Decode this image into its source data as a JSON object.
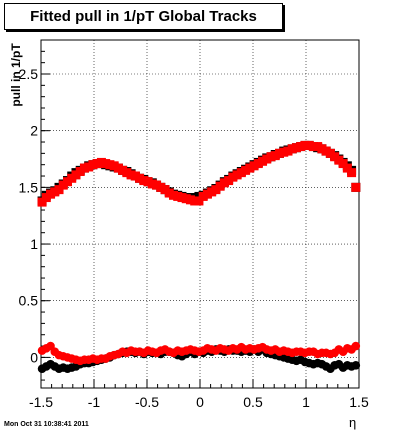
{
  "title": "Fitted pull in 1/pT  Global Tracks",
  "footer": "Mon Oct 31 10:38:41 2011",
  "chart_data": {
    "type": "scatter",
    "title": "Fitted pull in 1/pT  Global Tracks",
    "xlabel": "η",
    "ylabel": "pull in 1/pT",
    "xlim": [
      -1.5,
      1.5
    ],
    "ylim": [
      -0.27,
      2.8
    ],
    "x_ticks": [
      -1.5,
      -1,
      -0.5,
      0,
      0.5,
      1,
      1.5
    ],
    "x_tick_labels": [
      "-1.5",
      "-1",
      "-0.5",
      "0",
      "0.5",
      "1",
      "1.5"
    ],
    "y_ticks": [
      0,
      0.5,
      1,
      1.5,
      2,
      2.5
    ],
    "y_tick_labels": [
      "0",
      "0.5",
      "1",
      "1.5",
      "2",
      "2.5"
    ],
    "grid": true,
    "colors": {
      "black": "#000000",
      "red": "#ff0000"
    },
    "series": [
      {
        "color": "#000000",
        "marker": "square",
        "x": [
          -1.49,
          -1.45,
          -1.41,
          -1.37,
          -1.33,
          -1.29,
          -1.25,
          -1.21,
          -1.17,
          -1.13,
          -1.09,
          -1.05,
          -1.01,
          -0.97,
          -0.93,
          -0.89,
          -0.85,
          -0.81,
          -0.77,
          -0.73,
          -0.69,
          -0.65,
          -0.61,
          -0.57,
          -0.53,
          -0.49,
          -0.45,
          -0.41,
          -0.37,
          -0.33,
          -0.29,
          -0.25,
          -0.21,
          -0.17,
          -0.13,
          -0.09,
          -0.05,
          -0.01,
          0.03,
          0.07,
          0.11,
          0.15,
          0.19,
          0.23,
          0.27,
          0.31,
          0.35,
          0.39,
          0.43,
          0.47,
          0.51,
          0.55,
          0.59,
          0.63,
          0.67,
          0.71,
          0.75,
          0.79,
          0.83,
          0.87,
          0.91,
          0.95,
          0.99,
          1.03,
          1.07,
          1.11,
          1.15,
          1.19,
          1.23,
          1.27,
          1.31,
          1.35,
          1.39,
          1.43,
          1.47
        ],
        "y": [
          1.38,
          1.43,
          1.45,
          1.47,
          1.5,
          1.53,
          1.56,
          1.6,
          1.63,
          1.65,
          1.67,
          1.69,
          1.7,
          1.71,
          1.71,
          1.7,
          1.69,
          1.68,
          1.67,
          1.65,
          1.64,
          1.62,
          1.6,
          1.58,
          1.57,
          1.55,
          1.54,
          1.52,
          1.5,
          1.48,
          1.46,
          1.44,
          1.43,
          1.42,
          1.41,
          1.41,
          1.41,
          1.42,
          1.43,
          1.45,
          1.47,
          1.49,
          1.52,
          1.55,
          1.57,
          1.6,
          1.62,
          1.64,
          1.66,
          1.68,
          1.7,
          1.72,
          1.74,
          1.76,
          1.77,
          1.79,
          1.8,
          1.82,
          1.83,
          1.84,
          1.85,
          1.86,
          1.87,
          1.87,
          1.86,
          1.85,
          1.84,
          1.82,
          1.8,
          1.78,
          1.75,
          1.72,
          1.69,
          1.65,
          1.5
        ]
      },
      {
        "color": "#ff0000",
        "marker": "square",
        "x": [
          -1.49,
          -1.45,
          -1.41,
          -1.37,
          -1.33,
          -1.29,
          -1.25,
          -1.21,
          -1.17,
          -1.13,
          -1.09,
          -1.05,
          -1.01,
          -0.97,
          -0.93,
          -0.89,
          -0.85,
          -0.81,
          -0.77,
          -0.73,
          -0.69,
          -0.65,
          -0.61,
          -0.57,
          -0.53,
          -0.49,
          -0.45,
          -0.41,
          -0.37,
          -0.33,
          -0.29,
          -0.25,
          -0.21,
          -0.17,
          -0.13,
          -0.09,
          -0.05,
          -0.01,
          0.03,
          0.07,
          0.11,
          0.15,
          0.19,
          0.23,
          0.27,
          0.31,
          0.35,
          0.39,
          0.43,
          0.47,
          0.51,
          0.55,
          0.59,
          0.63,
          0.67,
          0.71,
          0.75,
          0.79,
          0.83,
          0.87,
          0.91,
          0.95,
          0.99,
          1.03,
          1.07,
          1.11,
          1.15,
          1.19,
          1.23,
          1.27,
          1.31,
          1.35,
          1.39,
          1.43,
          1.47
        ],
        "y": [
          1.37,
          1.41,
          1.44,
          1.46,
          1.48,
          1.52,
          1.55,
          1.58,
          1.61,
          1.64,
          1.67,
          1.68,
          1.7,
          1.71,
          1.72,
          1.71,
          1.7,
          1.69,
          1.67,
          1.65,
          1.63,
          1.61,
          1.6,
          1.58,
          1.56,
          1.55,
          1.53,
          1.52,
          1.5,
          1.48,
          1.45,
          1.43,
          1.42,
          1.41,
          1.4,
          1.39,
          1.38,
          1.38,
          1.42,
          1.44,
          1.46,
          1.48,
          1.51,
          1.54,
          1.56,
          1.59,
          1.61,
          1.63,
          1.65,
          1.67,
          1.69,
          1.71,
          1.73,
          1.75,
          1.77,
          1.78,
          1.8,
          1.81,
          1.82,
          1.84,
          1.85,
          1.86,
          1.87,
          1.87,
          1.86,
          1.86,
          1.84,
          1.82,
          1.8,
          1.77,
          1.74,
          1.71,
          1.67,
          1.63,
          1.5
        ]
      },
      {
        "color": "#000000",
        "marker": "circle",
        "x": [
          -1.49,
          -1.45,
          -1.41,
          -1.37,
          -1.33,
          -1.29,
          -1.25,
          -1.21,
          -1.17,
          -1.13,
          -1.09,
          -1.05,
          -1.01,
          -0.97,
          -0.93,
          -0.89,
          -0.85,
          -0.81,
          -0.77,
          -0.73,
          -0.69,
          -0.65,
          -0.61,
          -0.57,
          -0.53,
          -0.49,
          -0.45,
          -0.41,
          -0.37,
          -0.33,
          -0.29,
          -0.25,
          -0.21,
          -0.17,
          -0.13,
          -0.09,
          -0.05,
          -0.01,
          0.03,
          0.07,
          0.11,
          0.15,
          0.19,
          0.23,
          0.27,
          0.31,
          0.35,
          0.39,
          0.43,
          0.47,
          0.51,
          0.55,
          0.59,
          0.63,
          0.67,
          0.71,
          0.75,
          0.79,
          0.83,
          0.87,
          0.91,
          0.95,
          0.99,
          1.03,
          1.07,
          1.11,
          1.15,
          1.19,
          1.23,
          1.27,
          1.31,
          1.35,
          1.39,
          1.43,
          1.47
        ],
        "y": [
          -0.1,
          -0.08,
          -0.06,
          -0.08,
          -0.1,
          -0.09,
          -0.1,
          -0.09,
          -0.08,
          -0.06,
          -0.05,
          -0.05,
          -0.04,
          -0.03,
          -0.02,
          -0.01,
          0.0,
          0.02,
          0.03,
          0.04,
          0.05,
          0.05,
          0.04,
          0.05,
          0.03,
          0.05,
          0.04,
          0.04,
          0.03,
          0.05,
          0.05,
          0.04,
          0.02,
          0.01,
          0.03,
          0.05,
          0.03,
          0.05,
          0.04,
          0.06,
          0.05,
          0.07,
          0.06,
          0.05,
          0.07,
          0.06,
          0.06,
          0.05,
          0.06,
          0.05,
          0.07,
          0.05,
          0.07,
          0.04,
          0.03,
          0.02,
          0.01,
          0.0,
          -0.01,
          -0.02,
          -0.03,
          -0.02,
          -0.04,
          -0.05,
          -0.06,
          -0.05,
          -0.06,
          -0.08,
          -0.1,
          -0.07,
          -0.06,
          -0.09,
          -0.07,
          -0.08,
          -0.07
        ]
      },
      {
        "color": "#ff0000",
        "marker": "circle",
        "x": [
          -1.49,
          -1.45,
          -1.41,
          -1.37,
          -1.33,
          -1.29,
          -1.25,
          -1.21,
          -1.17,
          -1.13,
          -1.09,
          -1.05,
          -1.01,
          -0.97,
          -0.93,
          -0.89,
          -0.85,
          -0.81,
          -0.77,
          -0.73,
          -0.69,
          -0.65,
          -0.61,
          -0.57,
          -0.53,
          -0.49,
          -0.45,
          -0.41,
          -0.37,
          -0.33,
          -0.29,
          -0.25,
          -0.21,
          -0.17,
          -0.13,
          -0.09,
          -0.05,
          -0.01,
          0.03,
          0.07,
          0.11,
          0.15,
          0.19,
          0.23,
          0.27,
          0.31,
          0.35,
          0.39,
          0.43,
          0.47,
          0.51,
          0.55,
          0.59,
          0.63,
          0.67,
          0.71,
          0.75,
          0.79,
          0.83,
          0.87,
          0.91,
          0.95,
          0.99,
          1.03,
          1.07,
          1.11,
          1.15,
          1.19,
          1.23,
          1.27,
          1.31,
          1.35,
          1.39,
          1.43,
          1.47
        ],
        "y": [
          0.06,
          0.08,
          0.1,
          0.05,
          0.02,
          0.01,
          0.0,
          -0.01,
          -0.02,
          -0.03,
          -0.02,
          -0.02,
          -0.01,
          -0.02,
          -0.01,
          -0.01,
          0.01,
          0.02,
          0.03,
          0.05,
          0.04,
          0.06,
          0.05,
          0.05,
          0.04,
          0.06,
          0.05,
          0.04,
          0.06,
          0.07,
          0.05,
          0.04,
          0.06,
          0.05,
          0.06,
          0.07,
          0.06,
          0.05,
          0.06,
          0.08,
          0.07,
          0.06,
          0.08,
          0.07,
          0.06,
          0.08,
          0.07,
          0.09,
          0.07,
          0.08,
          0.07,
          0.08,
          0.09,
          0.07,
          0.06,
          0.07,
          0.05,
          0.06,
          0.05,
          0.04,
          0.05,
          0.05,
          0.04,
          0.05,
          0.05,
          0.03,
          0.04,
          0.04,
          0.03,
          0.04,
          0.07,
          0.05,
          0.08,
          0.07,
          0.1
        ]
      }
    ]
  }
}
